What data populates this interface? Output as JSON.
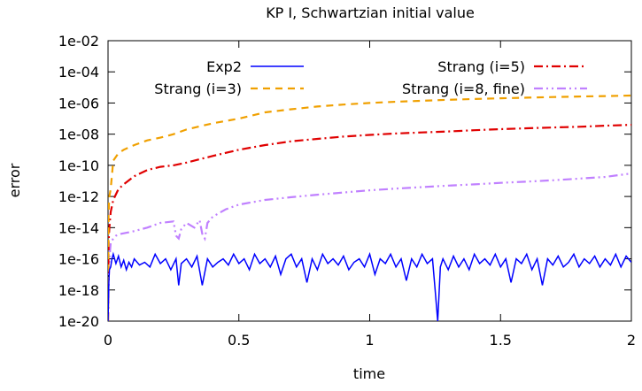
{
  "chart_data": {
    "type": "line",
    "title": "KP I, Schwartzian initial value",
    "xlabel": "time",
    "ylabel": "error",
    "xlim": [
      0,
      2
    ],
    "ylim": [
      1e-20,
      0.01
    ],
    "yscale": "log",
    "xticks": [
      0,
      0.5,
      1,
      1.5,
      2
    ],
    "xtick_labels": [
      "0",
      "0.5",
      "1",
      "1.5",
      "2"
    ],
    "yticks": [
      1e-20,
      1e-18,
      1e-16,
      1e-14,
      1e-12,
      1e-10,
      1e-08,
      1e-06,
      0.0001,
      0.01
    ],
    "ytick_labels": [
      "1e-20",
      "1e-18",
      "1e-16",
      "1e-14",
      "1e-12",
      "1e-10",
      "1e-08",
      "1e-06",
      "1e-04",
      "1e-02"
    ],
    "grid": false,
    "legend_position": "top",
    "series": [
      {
        "name": "Exp2",
        "color": "#0000ff",
        "dash": "solid",
        "x": [
          0,
          0.003,
          0.005,
          0.01,
          0.015,
          0.02,
          0.03,
          0.04,
          0.05,
          0.06,
          0.07,
          0.08,
          0.09,
          0.1,
          0.12,
          0.14,
          0.16,
          0.18,
          0.2,
          0.22,
          0.24,
          0.26,
          0.27,
          0.28,
          0.3,
          0.32,
          0.34,
          0.36,
          0.38,
          0.4,
          0.42,
          0.44,
          0.46,
          0.48,
          0.5,
          0.52,
          0.54,
          0.56,
          0.58,
          0.6,
          0.62,
          0.64,
          0.66,
          0.68,
          0.7,
          0.72,
          0.74,
          0.76,
          0.78,
          0.8,
          0.82,
          0.84,
          0.86,
          0.88,
          0.9,
          0.92,
          0.94,
          0.96,
          0.98,
          1.0,
          1.02,
          1.04,
          1.06,
          1.08,
          1.1,
          1.12,
          1.14,
          1.16,
          1.18,
          1.2,
          1.22,
          1.24,
          1.25,
          1.26,
          1.27,
          1.28,
          1.3,
          1.32,
          1.34,
          1.36,
          1.38,
          1.4,
          1.42,
          1.44,
          1.46,
          1.48,
          1.5,
          1.52,
          1.54,
          1.56,
          1.58,
          1.6,
          1.62,
          1.64,
          1.66,
          1.68,
          1.7,
          1.72,
          1.74,
          1.76,
          1.78,
          1.8,
          1.82,
          1.84,
          1.86,
          1.88,
          1.9,
          1.92,
          1.94,
          1.96,
          1.98,
          2.0
        ],
        "y": [
          1e-20,
          3e-18,
          2e-17,
          3e-17,
          1e-16,
          2e-16,
          5e-17,
          1.5e-16,
          3e-17,
          8e-17,
          2e-17,
          6e-17,
          3e-17,
          1e-16,
          4e-17,
          6e-17,
          3e-17,
          2e-16,
          5e-17,
          1e-16,
          2e-17,
          1e-16,
          2e-18,
          5e-17,
          1e-16,
          3e-17,
          1.5e-16,
          2e-18,
          1e-16,
          3e-17,
          6e-17,
          1e-16,
          4e-17,
          2e-16,
          5e-17,
          1e-16,
          2e-17,
          2e-16,
          5e-17,
          1e-16,
          3e-17,
          1.5e-16,
          1e-17,
          1e-16,
          2e-16,
          3e-17,
          1e-16,
          3e-18,
          1e-16,
          2e-17,
          2e-16,
          5e-17,
          1e-16,
          4e-17,
          1.5e-16,
          2e-17,
          6e-17,
          1e-16,
          3e-17,
          2e-16,
          1e-17,
          1e-16,
          5e-17,
          2e-16,
          3e-17,
          1e-16,
          4e-18,
          1e-16,
          3e-17,
          2e-16,
          5e-17,
          1e-16,
          1e-18,
          1e-20,
          3e-17,
          1e-16,
          2e-17,
          1.5e-16,
          3e-17,
          1e-16,
          2e-17,
          2e-16,
          5e-17,
          1e-16,
          4e-17,
          2e-16,
          3e-17,
          1e-16,
          3e-18,
          1e-16,
          5e-17,
          2e-16,
          2e-17,
          1e-16,
          2e-18,
          1e-16,
          4e-17,
          1.5e-16,
          3e-17,
          6e-17,
          2e-16,
          3e-17,
          1e-16,
          5e-17,
          1.5e-16,
          3e-17,
          1e-16,
          4e-17,
          2e-16,
          3e-17,
          1.5e-16,
          6e-17
        ]
      },
      {
        "name": "Strang (i=3)",
        "color": "#f0a000",
        "dash": "8,6",
        "x": [
          0,
          0.002,
          0.005,
          0.01,
          0.02,
          0.04,
          0.06,
          0.1,
          0.15,
          0.2,
          0.25,
          0.3,
          0.4,
          0.5,
          0.6,
          0.7,
          0.8,
          0.9,
          1.0,
          1.1,
          1.2,
          1.3,
          1.4,
          1.5,
          1.6,
          1.7,
          1.8,
          1.9,
          2.0
        ],
        "y": [
          1e-20,
          1e-13,
          1e-12,
          3e-12,
          2e-10,
          6e-10,
          1e-09,
          2e-09,
          4e-09,
          6e-09,
          1e-08,
          2e-08,
          5e-08,
          1e-07,
          2.5e-07,
          4e-07,
          6e-07,
          8e-07,
          1e-06,
          1.2e-06,
          1.4e-06,
          1.6e-06,
          1.8e-06,
          2e-06,
          2.2e-06,
          2.4e-06,
          2.6e-06,
          2.8e-06,
          3e-06
        ]
      },
      {
        "name": "Strang (i=5)",
        "color": "#e00000",
        "dash": "10,4,2,4",
        "x": [
          0,
          0.002,
          0.005,
          0.01,
          0.02,
          0.04,
          0.06,
          0.1,
          0.15,
          0.2,
          0.25,
          0.3,
          0.4,
          0.5,
          0.6,
          0.7,
          0.8,
          0.9,
          1.0,
          1.1,
          1.2,
          1.3,
          1.4,
          1.5,
          1.6,
          1.7,
          1.8,
          1.9,
          2.0
        ],
        "y": [
          1e-20,
          1e-15,
          1e-14,
          1e-13,
          6e-13,
          3e-12,
          6e-12,
          2e-11,
          5e-11,
          8e-11,
          1e-10,
          1.5e-10,
          4e-10,
          1e-09,
          2e-09,
          3.5e-09,
          5e-09,
          7e-09,
          9e-09,
          1.1e-08,
          1.3e-08,
          1.5e-08,
          1.8e-08,
          2.1e-08,
          2.4e-08,
          2.7e-08,
          3e-08,
          3.5e-08,
          4e-08
        ]
      },
      {
        "name": "Strang (i=8, fine)",
        "color": "#c080ff",
        "dash": "10,4,2,4,2,4",
        "x": [
          0,
          0.002,
          0.005,
          0.01,
          0.02,
          0.03,
          0.05,
          0.08,
          0.1,
          0.15,
          0.2,
          0.25,
          0.26,
          0.27,
          0.28,
          0.3,
          0.33,
          0.35,
          0.36,
          0.37,
          0.38,
          0.4,
          0.45,
          0.5,
          0.6,
          0.7,
          0.8,
          0.9,
          1.0,
          1.1,
          1.2,
          1.3,
          1.4,
          1.5,
          1.6,
          1.7,
          1.8,
          1.9,
          2.0
        ],
        "y": [
          1e-20,
          1e-18,
          1e-16,
          1e-15,
          2e-15,
          3e-15,
          4e-15,
          5e-15,
          6e-15,
          1e-14,
          2e-14,
          2.5e-14,
          3e-15,
          2e-15,
          8e-15,
          2e-14,
          1e-14,
          3e-14,
          4e-15,
          2e-15,
          2e-14,
          5e-14,
          1.5e-13,
          3e-13,
          6e-13,
          9e-13,
          1.3e-12,
          1.8e-12,
          2.5e-12,
          3.2e-12,
          4e-12,
          5e-12,
          6e-12,
          7.5e-12,
          9e-12,
          1.1e-11,
          1.4e-11,
          1.8e-11,
          3e-11
        ]
      }
    ]
  }
}
